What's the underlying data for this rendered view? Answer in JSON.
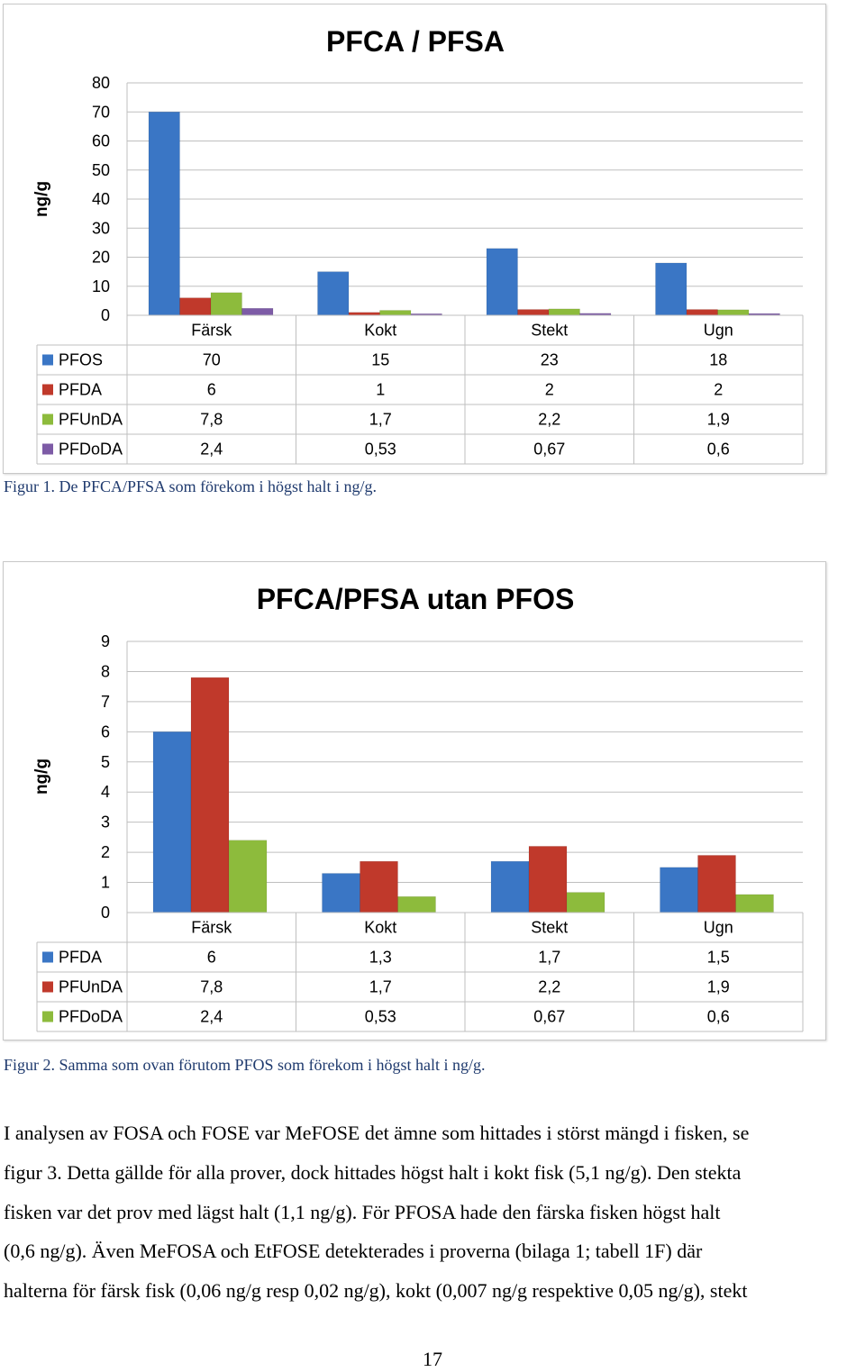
{
  "colors": {
    "blue": "#3a76c5",
    "red": "#c0392b",
    "green": "#8dbb3c",
    "purple": "#7d5ba6",
    "grid": "#bfbfbf",
    "axis_text": "#000000"
  },
  "chart_data": [
    {
      "type": "bar",
      "title": "PFCA / PFSA",
      "ylabel": "ng/g",
      "xlabel": "",
      "ylim": [
        0,
        80
      ],
      "yticks": [
        0,
        10,
        20,
        30,
        40,
        50,
        60,
        70,
        80
      ],
      "categories": [
        "Färsk",
        "Kokt",
        "Stekt",
        "Ugn"
      ],
      "series": [
        {
          "name": "PFOS",
          "color": "#3a76c5",
          "values": [
            70,
            15,
            23,
            18
          ],
          "labels": [
            "70",
            "15",
            "23",
            "18"
          ]
        },
        {
          "name": "PFDA",
          "color": "#c0392b",
          "values": [
            6,
            1,
            2,
            2
          ],
          "labels": [
            "6",
            "1",
            "2",
            "2"
          ]
        },
        {
          "name": "PFUnDA",
          "color": "#8dbb3c",
          "values": [
            7.8,
            1.7,
            2.2,
            1.9
          ],
          "labels": [
            "7,8",
            "1,7",
            "2,2",
            "1,9"
          ]
        },
        {
          "name": "PFDoDA",
          "color": "#7d5ba6",
          "values": [
            2.4,
            0.53,
            0.67,
            0.6
          ],
          "labels": [
            "2,4",
            "0,53",
            "0,67",
            "0,6"
          ]
        }
      ],
      "grid": true,
      "legend": "data-table"
    },
    {
      "type": "bar",
      "title": "PFCA/PFSA utan PFOS",
      "ylabel": "ng/g",
      "xlabel": "",
      "ylim": [
        0,
        9
      ],
      "yticks": [
        0,
        1,
        2,
        3,
        4,
        5,
        6,
        7,
        8,
        9
      ],
      "categories": [
        "Färsk",
        "Kokt",
        "Stekt",
        "Ugn"
      ],
      "series": [
        {
          "name": "PFDA",
          "color": "#3a76c5",
          "values": [
            6,
            1.3,
            1.7,
            1.5
          ],
          "labels": [
            "6",
            "1,3",
            "1,7",
            "1,5"
          ]
        },
        {
          "name": "PFUnDA",
          "color": "#c0392b",
          "values": [
            7.8,
            1.7,
            2.2,
            1.9
          ],
          "labels": [
            "7,8",
            "1,7",
            "2,2",
            "1,9"
          ]
        },
        {
          "name": "PFDoDA",
          "color": "#8dbb3c",
          "values": [
            2.4,
            0.53,
            0.67,
            0.6
          ],
          "labels": [
            "2,4",
            "0,53",
            "0,67",
            "0,6"
          ]
        }
      ],
      "grid": true,
      "legend": "data-table"
    }
  ],
  "captions": {
    "figure1": "Figur 1. De PFCA/PFSA som förekom i högst halt i ng/g.",
    "figure2": "Figur 2. Samma som ovan förutom PFOS som förekom i högst halt i ng/g."
  },
  "body": {
    "lines": [
      "I analysen av FOSA och FOSE var MeFOSE det ämne som hittades i störst mängd i fisken, se",
      "figur 3. Detta gällde för alla prover, dock hittades högst halt i kokt fisk (5,1 ng/g). Den stekta",
      "fisken var det prov med lägst halt (1,1 ng/g). För PFOSA hade den färska fisken högst halt",
      "(0,6 ng/g). Även MeFOSA och EtFOSE detekterades i proverna (bilaga 1; tabell 1F) där",
      "halterna för färsk fisk (0,06 ng/g resp 0,02 ng/g), kokt (0,007 ng/g respektive 0,05 ng/g), stekt"
    ]
  },
  "page_number": "17"
}
